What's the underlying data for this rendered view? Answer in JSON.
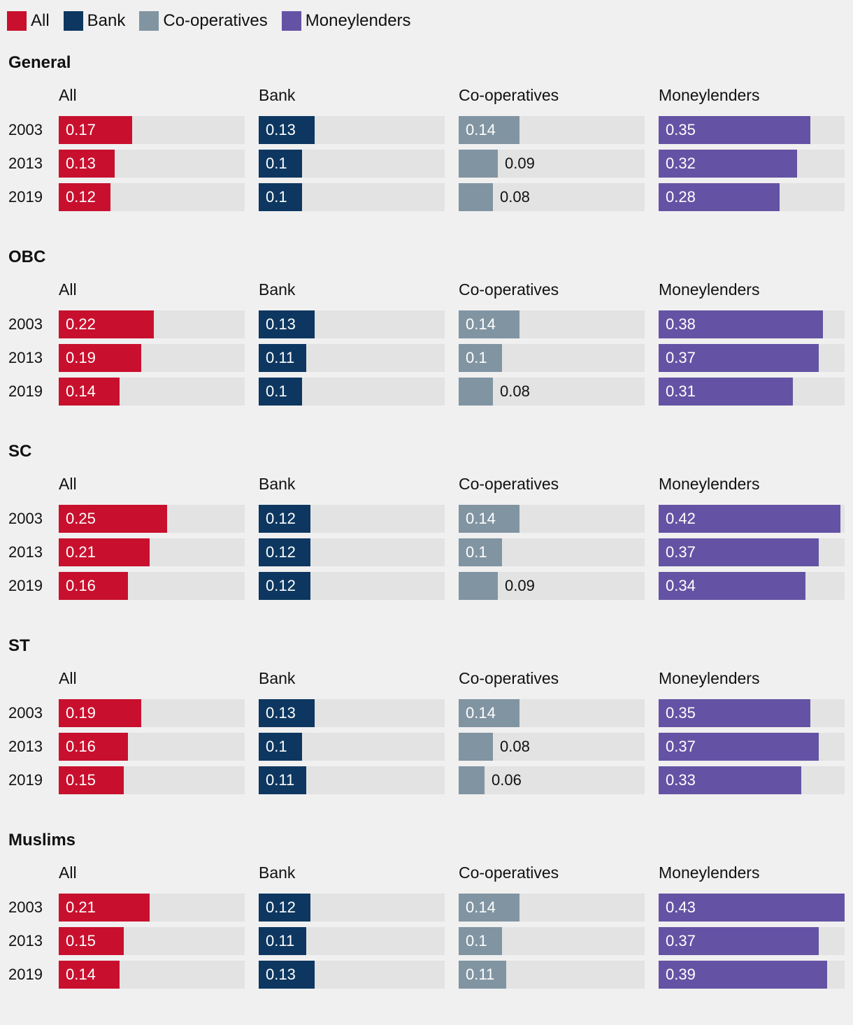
{
  "legend": [
    {
      "label": "All",
      "color": "#c8102e",
      "icon": "swatch-all-icon"
    },
    {
      "label": "Bank",
      "color": "#0d3760",
      "icon": "swatch-bank-icon"
    },
    {
      "label": "Co-operatives",
      "color": "#8194a2",
      "icon": "swatch-cooperatives-icon"
    },
    {
      "label": "Moneylenders",
      "color": "#6453a4",
      "icon": "swatch-moneylenders-icon"
    }
  ],
  "chart_data": {
    "type": "bar",
    "orientation": "horizontal",
    "layout": "small-multiples",
    "xlim": [
      0,
      0.43
    ],
    "years": [
      "2003",
      "2013",
      "2019"
    ],
    "series": [
      "All",
      "Bank",
      "Co-operatives",
      "Moneylenders"
    ],
    "groups": [
      {
        "name": "General",
        "values": {
          "All": [
            0.17,
            0.13,
            0.12
          ],
          "Bank": [
            0.13,
            0.1,
            0.1
          ],
          "Co-operatives": [
            0.14,
            0.09,
            0.08
          ],
          "Moneylenders": [
            0.35,
            0.32,
            0.28
          ]
        }
      },
      {
        "name": "OBC",
        "values": {
          "All": [
            0.22,
            0.19,
            0.14
          ],
          "Bank": [
            0.13,
            0.11,
            0.1
          ],
          "Co-operatives": [
            0.14,
            0.1,
            0.08
          ],
          "Moneylenders": [
            0.38,
            0.37,
            0.31
          ]
        }
      },
      {
        "name": "SC",
        "values": {
          "All": [
            0.25,
            0.21,
            0.16
          ],
          "Bank": [
            0.12,
            0.12,
            0.12
          ],
          "Co-operatives": [
            0.14,
            0.1,
            0.09
          ],
          "Moneylenders": [
            0.42,
            0.37,
            0.34
          ]
        }
      },
      {
        "name": "ST",
        "values": {
          "All": [
            0.19,
            0.16,
            0.15
          ],
          "Bank": [
            0.13,
            0.1,
            0.11
          ],
          "Co-operatives": [
            0.14,
            0.08,
            0.06
          ],
          "Moneylenders": [
            0.35,
            0.37,
            0.33
          ]
        }
      },
      {
        "name": "Muslims",
        "values": {
          "All": [
            0.21,
            0.15,
            0.14
          ],
          "Bank": [
            0.12,
            0.11,
            0.13
          ],
          "Co-operatives": [
            0.14,
            0.1,
            0.11
          ],
          "Moneylenders": [
            0.43,
            0.37,
            0.39
          ]
        }
      }
    ]
  }
}
